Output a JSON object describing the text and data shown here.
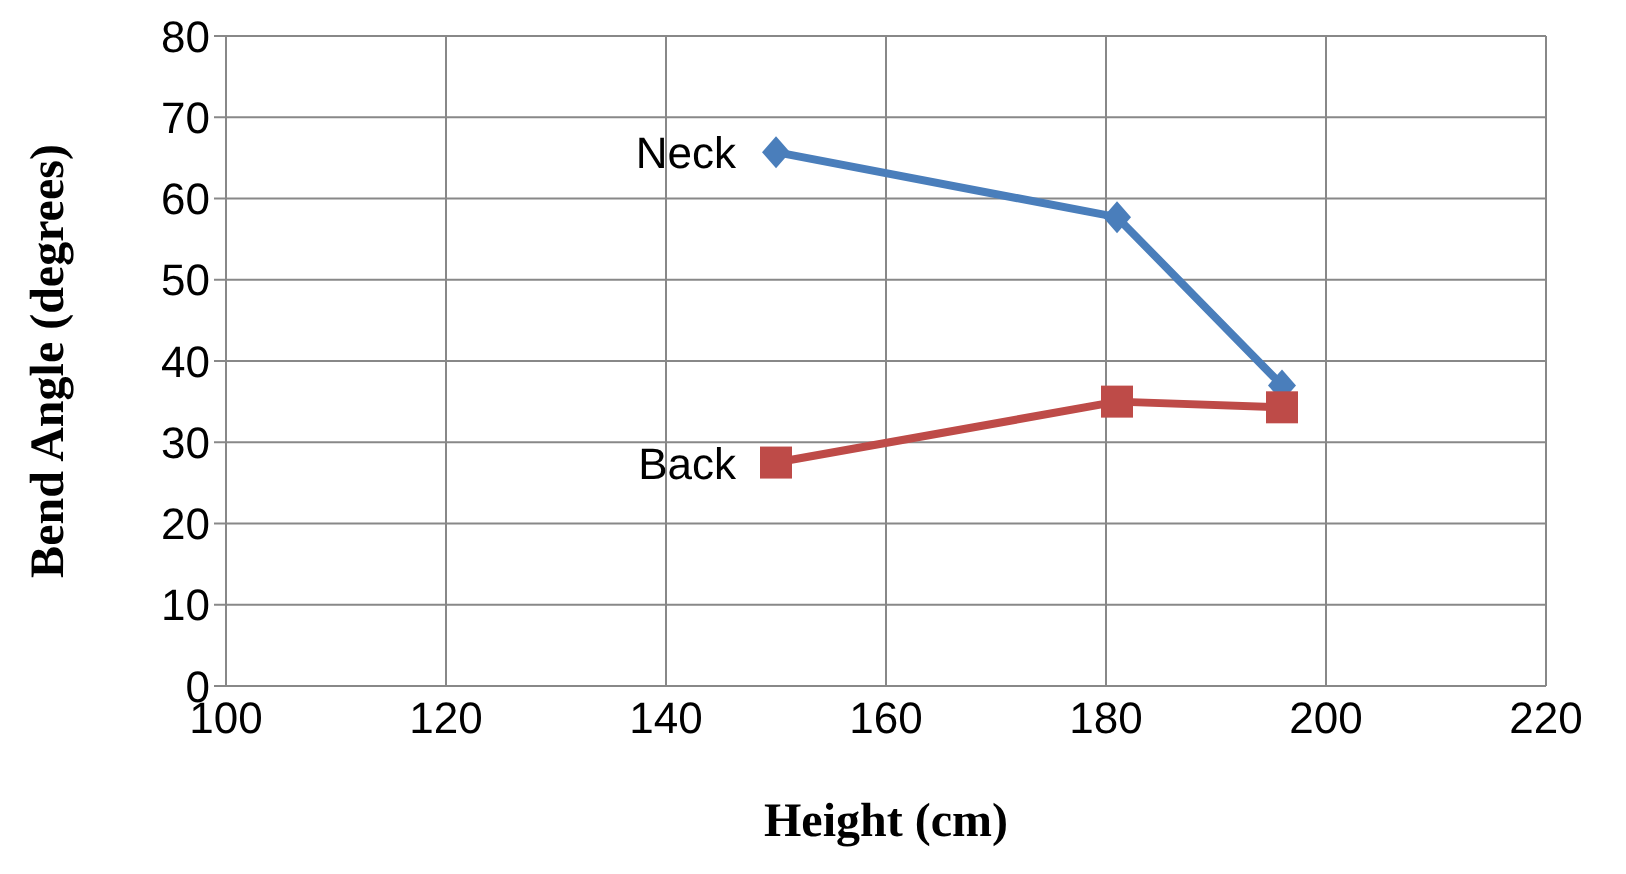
{
  "chart_data": {
    "type": "line",
    "xlabel": "Height (cm)",
    "ylabel": "Bend Angle (degrees)",
    "series": [
      {
        "name": "Neck",
        "color": "#4a7ebb",
        "marker": "diamond",
        "x": [
          150,
          181,
          196
        ],
        "values": [
          65.7,
          57.7,
          37
        ]
      },
      {
        "name": "Back",
        "color": "#be4b48",
        "marker": "square",
        "x": [
          150,
          181,
          196
        ],
        "values": [
          27.5,
          35,
          34.3
        ]
      }
    ],
    "xlim": [
      100,
      220
    ],
    "xticks": [
      100,
      120,
      140,
      160,
      180,
      200,
      220
    ],
    "ylim": [
      0,
      80
    ],
    "yticks": [
      0,
      10,
      20,
      30,
      40,
      50,
      60,
      70,
      80
    ],
    "grid": true
  }
}
